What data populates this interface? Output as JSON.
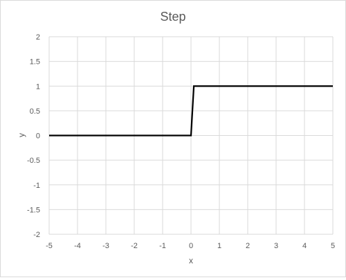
{
  "chart_data": {
    "type": "line",
    "title": "Step",
    "xlabel": "x",
    "ylabel": "y",
    "xlim": [
      -5,
      5
    ],
    "ylim": [
      -2,
      2
    ],
    "x_ticks": [
      -5,
      -4,
      -3,
      -2,
      -1,
      0,
      1,
      2,
      3,
      4,
      5
    ],
    "y_ticks": [
      -2,
      -1.5,
      -1,
      -0.5,
      0,
      0.5,
      1,
      1.5,
      2
    ],
    "grid": true,
    "legend": "none",
    "series": [
      {
        "x": [
          -5,
          0,
          0.1,
          5
        ],
        "y": [
          0,
          0,
          1,
          1
        ],
        "color": "#000000"
      }
    ],
    "colors": {
      "grid": "#d9d9d9",
      "text": "#595959",
      "line": "#000000"
    }
  }
}
